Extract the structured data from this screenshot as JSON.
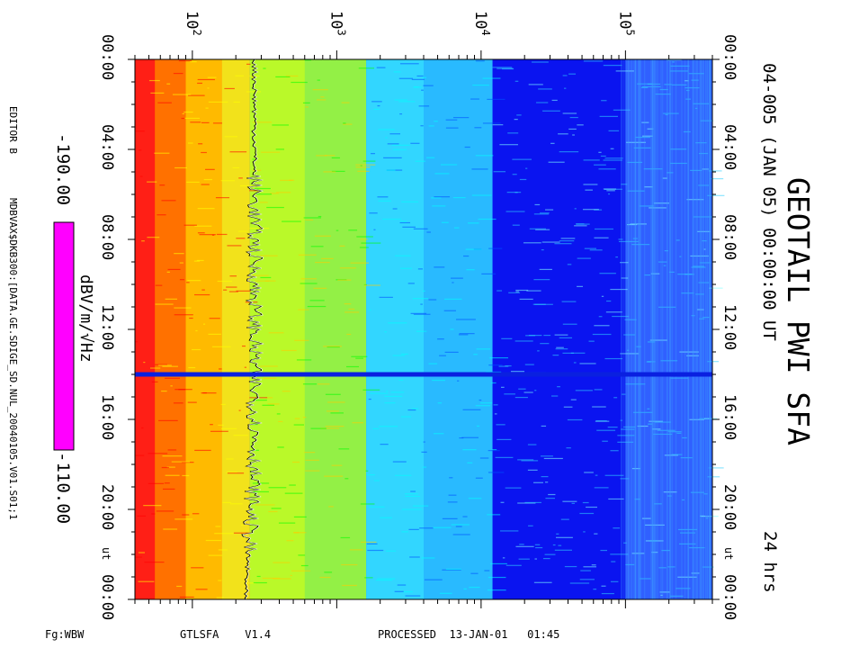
{
  "chart_data": {
    "type": "heatmap",
    "title": "GEOTAIL PWI SFA",
    "subtitle": "04-005 (JAN 05) 00:00:00 UT",
    "duration": "24 hrs",
    "x_axis": {
      "quantity": "frequency",
      "scale": "log",
      "tick_labels": [
        {
          "value": 100,
          "base": "10",
          "exp": "2"
        },
        {
          "value": 1000,
          "base": "10",
          "exp": "3"
        },
        {
          "value": 10000,
          "base": "10",
          "exp": "4"
        },
        {
          "value": 100000,
          "base": "10",
          "exp": "5"
        }
      ]
    },
    "y_axis": {
      "quantity": "time",
      "tick_labels": [
        "00:00",
        "04:00",
        "08:00",
        "12:00",
        "16:00",
        "20:00",
        "00:00"
      ],
      "units_label": "UT",
      "units_label_axis": "ut"
    },
    "colorbar": {
      "label": "dBV/m/√Hz",
      "min_label": "-190.00",
      "max_label": "-110.00",
      "range": [
        -190,
        -110
      ],
      "colors": [
        "#ff00ff",
        "#ff0000",
        "#ffa500",
        "#ffff00",
        "#00ff00",
        "#00ffff",
        "#0000ff"
      ]
    },
    "data_gap_time_h": 14.0,
    "dominant_bands": [
      {
        "freq_range": [
          40,
          250
        ],
        "color": "#ff4000"
      },
      {
        "freq_range": [
          250,
          1600
        ],
        "color": "#c8f020"
      },
      {
        "freq_range": [
          1600,
          12000
        ],
        "color": "#20c8ff"
      },
      {
        "freq_range": [
          12000,
          100000
        ],
        "color": "#0a14f0"
      },
      {
        "freq_range": [
          100000,
          400000
        ],
        "color": "#3060ff"
      }
    ]
  },
  "footer": {
    "left": "Fg:WBW",
    "program": "GTLSFA    V1.4",
    "processed": "PROCESSED  13-JAN-01   01:45"
  },
  "side": {
    "editor": "EDITOR B",
    "file": "MDBVAX$DKB300:[DATA.GE.SDIGE_SD.NUL_20040105.V01.S01;1"
  }
}
